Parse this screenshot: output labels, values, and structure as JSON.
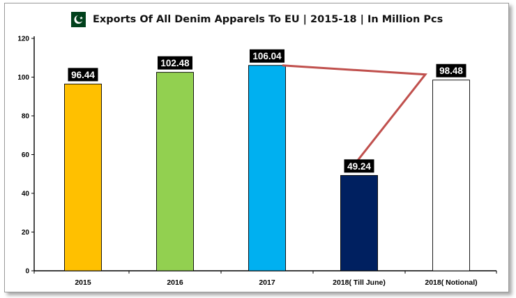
{
  "flag_icon": "pakistan-flag-icon",
  "colors": {
    "bar_2015": "#ffc000",
    "bar_2016": "#92d050",
    "bar_2017": "#00b0f0",
    "bar_2018_june": "#002060",
    "bar_2018_notional": "#ffffff",
    "connector_line": "#c0504d",
    "label_box": "#000000"
  },
  "chart_data": {
    "type": "bar",
    "title": "Exports Of All Denim Apparels To EU | 2015-18 | In Million Pcs",
    "xlabel": "",
    "ylabel": "",
    "categories": [
      "2015",
      "2016",
      "2017",
      "2018( Till June)",
      "2018( Notional)"
    ],
    "values": [
      96.44,
      102.48,
      106.04,
      49.24,
      98.48
    ],
    "data_labels": [
      "96.44",
      "102.48",
      "106.04",
      "49.24",
      "98.48"
    ],
    "yticks": [
      "0",
      "20",
      "40",
      "60",
      "80",
      "100",
      "120"
    ],
    "ylim": [
      0,
      120
    ],
    "grid": false,
    "legend": "none",
    "annotation": "connector line from 2017 through 2018( Notional) to 2018( Till June)"
  }
}
